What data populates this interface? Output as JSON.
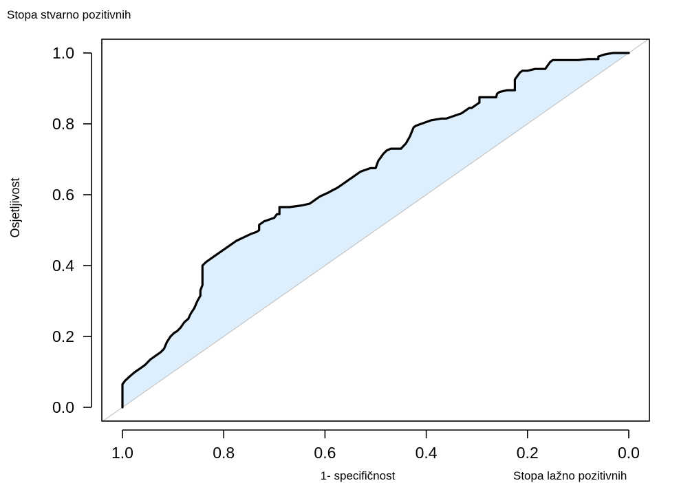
{
  "annotations": {
    "top_left": "Stopa stvarno pozitivnih",
    "bottom_right": "Stopa lažno pozitivnih"
  },
  "chart_data": {
    "type": "line",
    "title": "",
    "xlabel": "1- specifičnost",
    "ylabel": "Osjetljivost",
    "xlim": [
      1.0,
      0.0
    ],
    "ylim": [
      0.0,
      1.0
    ],
    "x_reversed": true,
    "x_ticks": [
      "1.0",
      "0.8",
      "0.6",
      "0.4",
      "0.2",
      "0.0"
    ],
    "y_ticks": [
      "0.0",
      "0.2",
      "0.4",
      "0.6",
      "0.8",
      "1.0"
    ],
    "grid": false,
    "reference_line": {
      "from": [
        1.0,
        0.0
      ],
      "to": [
        0.0,
        1.0
      ],
      "color": "#c8c8c8"
    },
    "fill_color": "#ddeefc",
    "line_color": "#000000",
    "series": [
      {
        "specificity": [
          1.0,
          1.0,
          0.995,
          0.985,
          0.975,
          0.965,
          0.955,
          0.945,
          0.935,
          0.925,
          0.918,
          0.912,
          0.905,
          0.898,
          0.892,
          0.885,
          0.878,
          0.87,
          0.865,
          0.858,
          0.852,
          0.846,
          0.846,
          0.842,
          0.842,
          0.835,
          0.82,
          0.805,
          0.79,
          0.775,
          0.76,
          0.745,
          0.735,
          0.73,
          0.73,
          0.72,
          0.71,
          0.7,
          0.695,
          0.69,
          0.69,
          0.68,
          0.67,
          0.645,
          0.63,
          0.62,
          0.61,
          0.595,
          0.575,
          0.565,
          0.555,
          0.545,
          0.53,
          0.52,
          0.51,
          0.5,
          0.495,
          0.485,
          0.478,
          0.47,
          0.46,
          0.45,
          0.44,
          0.432,
          0.425,
          0.42,
          0.4,
          0.39,
          0.37,
          0.36,
          0.33,
          0.32,
          0.315,
          0.31,
          0.295,
          0.295,
          0.29,
          0.262,
          0.26,
          0.255,
          0.24,
          0.225,
          0.225,
          0.215,
          0.21,
          0.2,
          0.185,
          0.165,
          0.16,
          0.155,
          0.15,
          0.14,
          0.12,
          0.1,
          0.08,
          0.06,
          0.06,
          0.05,
          0.04,
          0.03,
          0.02,
          0.0
        ],
        "sensitivity": [
          0.0,
          0.065,
          0.075,
          0.088,
          0.1,
          0.11,
          0.12,
          0.135,
          0.145,
          0.155,
          0.165,
          0.185,
          0.2,
          0.21,
          0.215,
          0.225,
          0.24,
          0.25,
          0.265,
          0.28,
          0.3,
          0.315,
          0.33,
          0.345,
          0.4,
          0.41,
          0.425,
          0.44,
          0.455,
          0.47,
          0.48,
          0.49,
          0.495,
          0.5,
          0.515,
          0.525,
          0.53,
          0.535,
          0.545,
          0.545,
          0.565,
          0.565,
          0.565,
          0.57,
          0.575,
          0.585,
          0.595,
          0.605,
          0.62,
          0.63,
          0.64,
          0.65,
          0.665,
          0.67,
          0.675,
          0.675,
          0.695,
          0.715,
          0.725,
          0.73,
          0.73,
          0.73,
          0.745,
          0.765,
          0.79,
          0.795,
          0.805,
          0.81,
          0.815,
          0.815,
          0.83,
          0.84,
          0.845,
          0.845,
          0.86,
          0.875,
          0.875,
          0.875,
          0.885,
          0.89,
          0.895,
          0.895,
          0.925,
          0.945,
          0.95,
          0.95,
          0.955,
          0.955,
          0.965,
          0.975,
          0.98,
          0.98,
          0.98,
          0.98,
          0.983,
          0.983,
          0.99,
          0.995,
          0.998,
          1.0,
          1.0,
          1.0
        ]
      }
    ]
  }
}
